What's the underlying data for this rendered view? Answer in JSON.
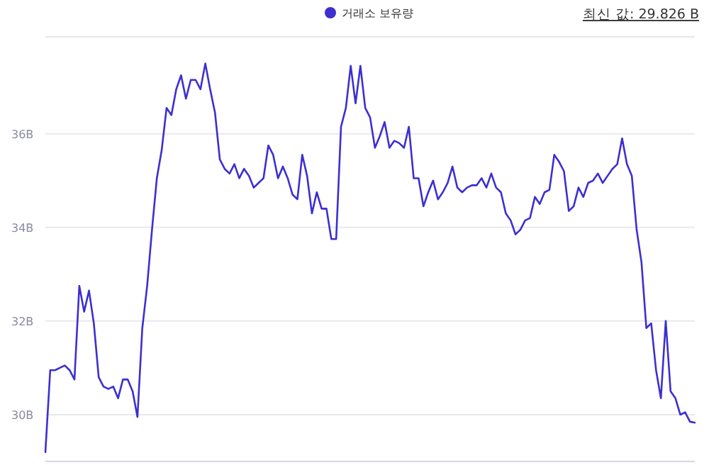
{
  "chart_data": {
    "type": "line",
    "annotations": [
      "최신 값: 29.826 B"
    ],
    "categories": [
      null,
      null,
      null,
      null,
      null,
      null,
      null,
      null,
      null,
      null,
      null,
      null,
      null,
      null,
      null,
      null,
      null,
      null,
      null,
      null,
      null,
      null,
      null,
      null,
      null,
      null,
      null,
      null,
      null,
      null,
      null,
      null,
      null,
      null,
      null,
      null,
      null,
      null,
      null,
      null,
      null,
      null,
      null,
      null,
      null,
      null,
      null,
      null,
      null,
      null,
      null,
      null,
      null,
      null,
      null,
      null,
      null,
      null,
      null,
      null,
      null,
      null,
      null,
      null,
      null,
      null,
      null,
      null,
      null,
      null,
      null,
      null,
      null,
      null,
      null,
      null,
      null,
      null,
      null,
      null,
      null,
      null,
      null,
      null,
      null,
      null,
      null,
      null,
      null,
      null,
      null,
      null,
      null,
      null,
      null,
      null,
      null,
      null,
      null,
      null,
      null,
      null,
      null,
      null,
      null,
      null,
      null,
      null,
      null,
      null,
      null,
      null,
      null,
      null,
      null,
      null,
      null,
      null,
      null,
      null,
      null,
      null,
      null,
      null,
      null,
      null,
      null,
      null,
      null,
      null,
      null,
      null,
      null,
      null,
      null
    ],
    "series": [
      {
        "name": "거래소 보유량",
        "color": "#3d2fd0",
        "values": [
          29.2,
          30.95,
          30.95,
          31.0,
          31.05,
          30.95,
          30.75,
          32.75,
          32.2,
          32.65,
          31.95,
          30.8,
          30.6,
          30.55,
          30.6,
          30.35,
          30.75,
          30.75,
          30.5,
          29.95,
          31.85,
          32.75,
          33.95,
          35.05,
          35.65,
          36.55,
          36.4,
          36.95,
          37.25,
          36.75,
          37.15,
          37.15,
          36.95,
          37.5,
          36.95,
          36.45,
          35.45,
          35.25,
          35.15,
          35.35,
          35.05,
          35.25,
          35.1,
          34.85,
          34.95,
          35.05,
          35.75,
          35.55,
          35.05,
          35.3,
          35.05,
          34.7,
          34.6,
          35.55,
          35.1,
          34.3,
          34.75,
          34.4,
          34.4,
          33.75,
          33.75,
          36.15,
          36.55,
          37.45,
          36.65,
          37.45,
          36.55,
          36.35,
          35.7,
          35.95,
          36.25,
          35.7,
          35.85,
          35.8,
          35.7,
          36.15,
          35.05,
          35.05,
          34.45,
          34.75,
          35.0,
          34.6,
          34.75,
          34.95,
          35.3,
          34.85,
          34.75,
          34.85,
          34.9,
          34.9,
          35.05,
          34.85,
          35.15,
          34.85,
          34.75,
          34.3,
          34.15,
          33.85,
          33.95,
          34.15,
          34.2,
          34.65,
          34.5,
          34.75,
          34.8,
          35.55,
          35.4,
          35.2,
          34.35,
          34.45,
          34.85,
          34.65,
          34.95,
          35.0,
          35.15,
          34.95,
          35.1,
          35.25,
          35.35,
          35.9,
          35.35,
          35.1,
          33.95,
          33.25,
          31.85,
          31.95,
          30.95,
          30.35,
          32.0,
          30.5,
          30.35,
          30.0,
          30.05,
          29.85,
          29.83
        ]
      }
    ],
    "ylim": [
      29,
      38
    ],
    "yticks": [
      {
        "value": 30,
        "label": "30B"
      },
      {
        "value": 32,
        "label": "32B"
      },
      {
        "value": 34,
        "label": "34B"
      },
      {
        "value": 36,
        "label": "36B"
      }
    ],
    "grid": "y",
    "legend": "top",
    "tick_labels": "y",
    "line_style": "solid",
    "marker": "none"
  }
}
